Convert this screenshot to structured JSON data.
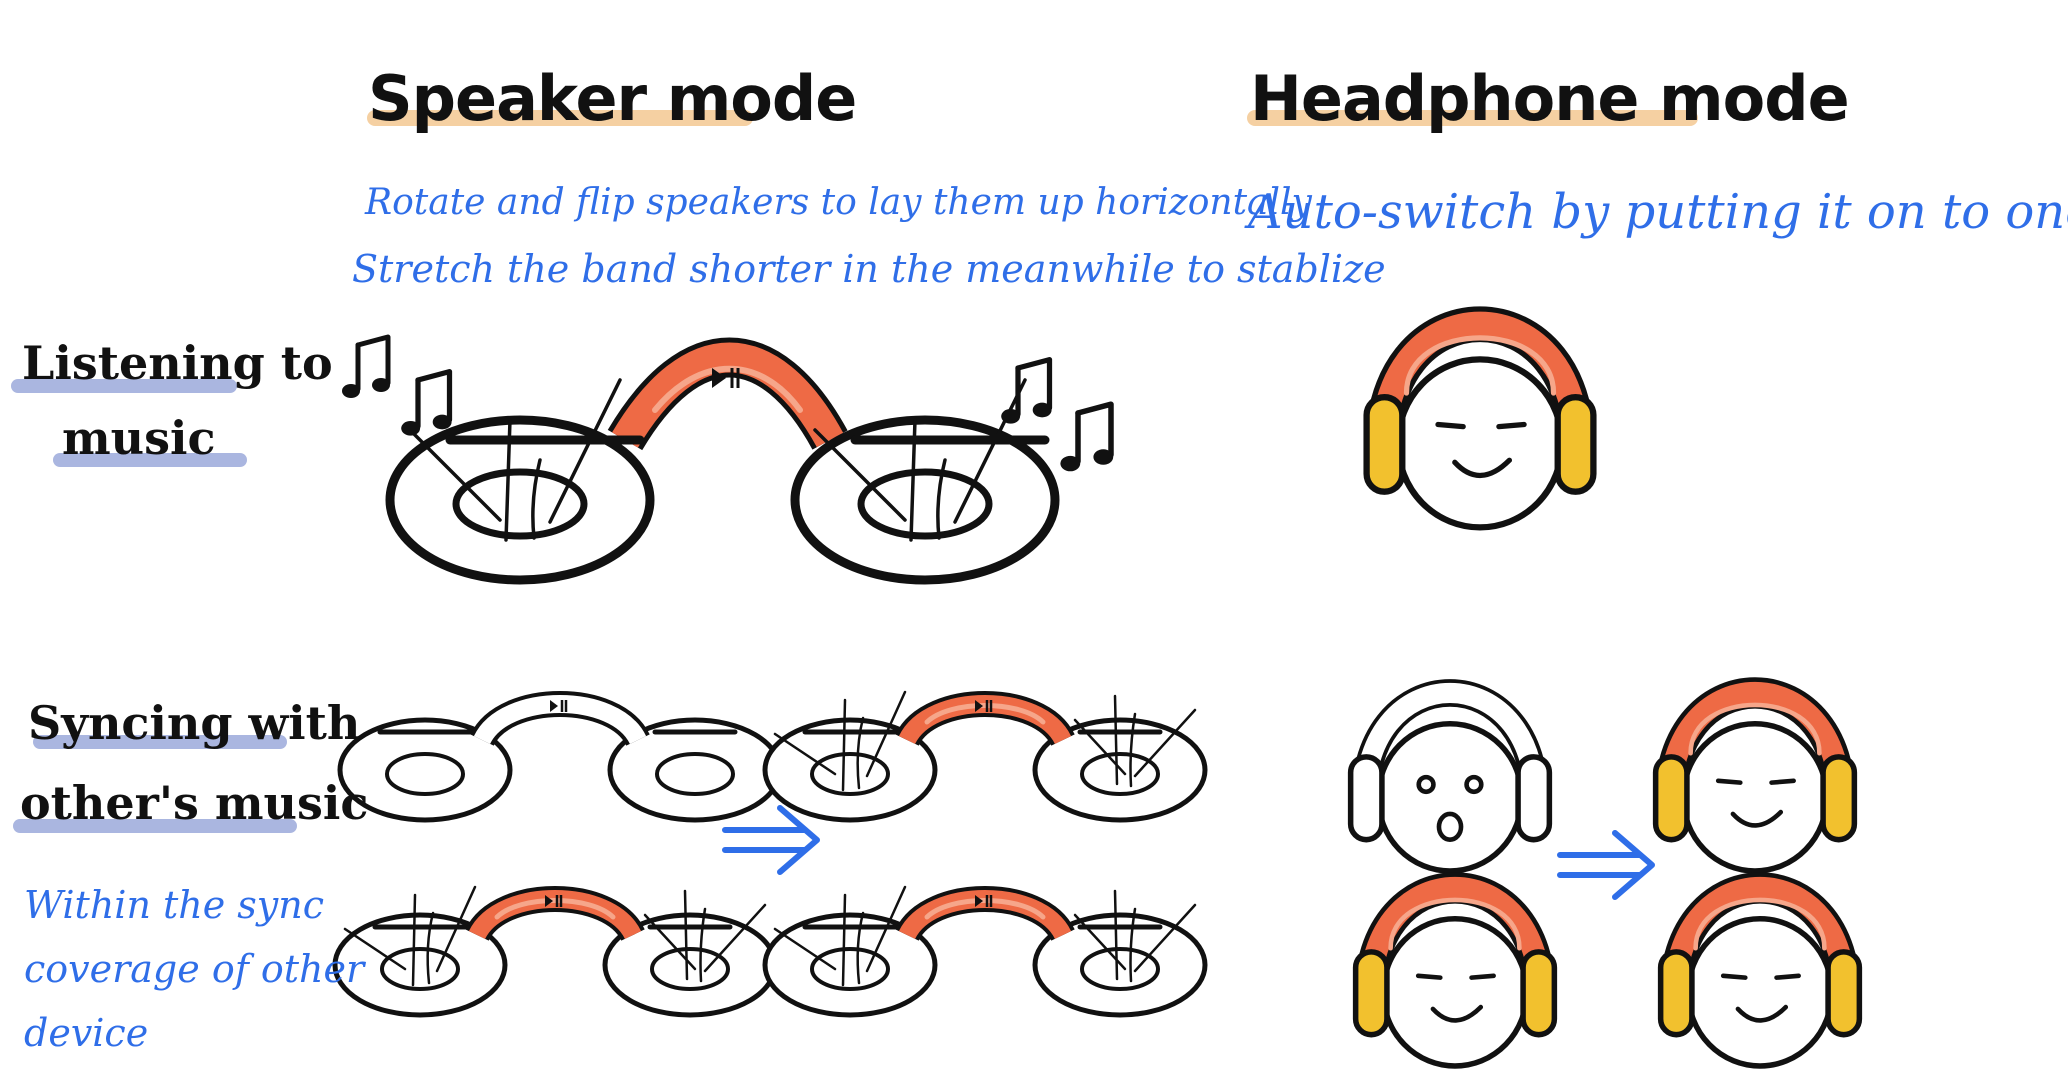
{
  "columns": {
    "speaker": {
      "title": "Speaker mode",
      "notes": [
        "Rotate and flip speakers to lay them up horizontally",
        "Stretch the band shorter in the meanwhile to stablize"
      ]
    },
    "headphone": {
      "title": "Headphone mode",
      "note": "Auto-switch by putting it on to one's ears"
    }
  },
  "rows": {
    "listening": {
      "label_line1": "Listening to",
      "label_line2": "music"
    },
    "syncing": {
      "label_line1": "Syncing with",
      "label_line2": "other's music",
      "notes": [
        "Within the sync",
        "coverage of other",
        "device"
      ]
    }
  },
  "icons": {
    "arrow": "double-arrow-right",
    "music_note": "beamed-eighth-notes",
    "play_pause": "play-pause"
  },
  "colors": {
    "ink": "#111111",
    "blue": "#2f6ee8",
    "band": "#ee6a45",
    "band_light": "#f6a68a",
    "earcup": "#f2c12e",
    "heading_underline": "#f3c58b",
    "label_underline": "#aab6e0"
  }
}
